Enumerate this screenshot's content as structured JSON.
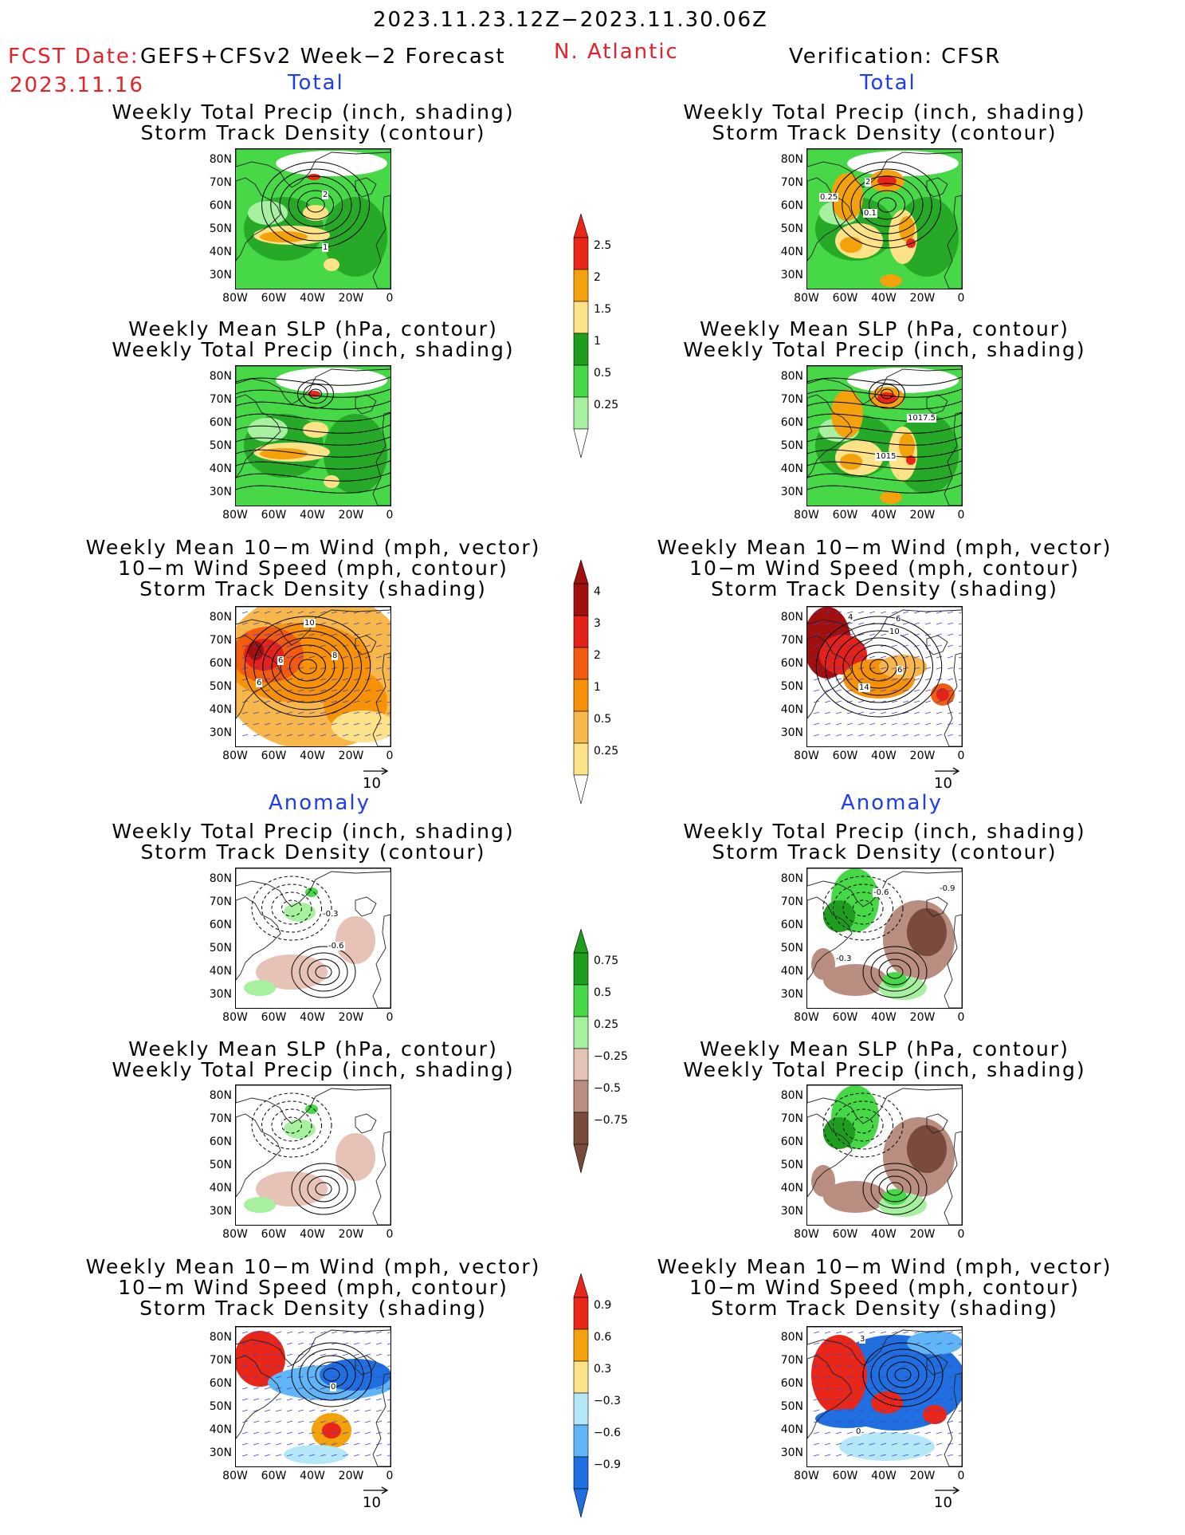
{
  "header": {
    "period": "2023.11.23.12Z−2023.11.30.06Z",
    "fcst_label": "FCST Date:",
    "model": "GEFS+CFSv2 Week−2 Forecast",
    "fcst_date": "2023.11.16",
    "region": "N. Atlantic",
    "verification": "Verification: CFSR"
  },
  "sections": {
    "total": "Total",
    "anomaly": "Anomaly"
  },
  "panel_titles": {
    "precip_storm": [
      "Weekly Total Precip (inch, shading)",
      "Storm Track Density (contour)"
    ],
    "slp_precip": [
      "Weekly Mean SLP (hPa, contour)",
      "Weekly Total Precip (inch, shading)"
    ],
    "wind_storm": [
      "Weekly Mean 10−m Wind (mph, vector)",
      "10−m Wind Speed (mph, contour)",
      "Storm Track Density (shading)"
    ]
  },
  "axes": {
    "lat_ticks": [
      "80N",
      "70N",
      "60N",
      "50N",
      "40N",
      "30N"
    ],
    "lon_ticks": [
      "80W",
      "60W",
      "40W",
      "20W",
      "0"
    ]
  },
  "vector_reference": "10",
  "colorbars": {
    "precip_total": {
      "labels": [
        "2.5",
        "2",
        "1.5",
        "1",
        "0.5",
        "0.25"
      ],
      "colors": [
        "#e8261a",
        "#f4a20c",
        "#fde287",
        "#1e9d1e",
        "#46d846",
        "#a6f0a0"
      ]
    },
    "storm_total": {
      "labels": [
        "4",
        "3",
        "2",
        "1",
        "0.5",
        "0.25"
      ],
      "colors": [
        "#a10f0f",
        "#e32219",
        "#f25c10",
        "#f79208",
        "#f8b74a",
        "#fde28a"
      ]
    },
    "precip_anom": {
      "labels": [
        "0.75",
        "0.5",
        "0.25",
        "−0.25",
        "−0.5",
        "−0.75"
      ],
      "colors": [
        "#1e9d1e",
        "#46d846",
        "#a6f0a0",
        "#e6c3b6",
        "#b98d80",
        "#7a4a3c"
      ]
    },
    "storm_anom": {
      "labels": [
        "0.9",
        "0.6",
        "0.3",
        "−0.3",
        "−0.6",
        "−0.9"
      ],
      "colors": [
        "#e8261a",
        "#f4a20c",
        "#fde287",
        "#b4e8f8",
        "#5fb5f5",
        "#1f6fe0"
      ]
    }
  },
  "contour_labels": {
    "fl1": [
      "2",
      "1"
    ],
    "fr1": [
      "2",
      "0.25",
      "0.1"
    ],
    "fr2": [
      "1017.5",
      "1015"
    ],
    "fl3": [
      "10",
      "6",
      "8",
      "6"
    ],
    "fr3": [
      "4",
      "6",
      "10",
      "6",
      "14"
    ],
    "al1": [
      "-0.3",
      "-0.6"
    ],
    "ar1": [
      "-0.6",
      "-0.9",
      "-0.3"
    ],
    "al3": [
      "0"
    ],
    "ar3": [
      "3",
      "0"
    ]
  }
}
